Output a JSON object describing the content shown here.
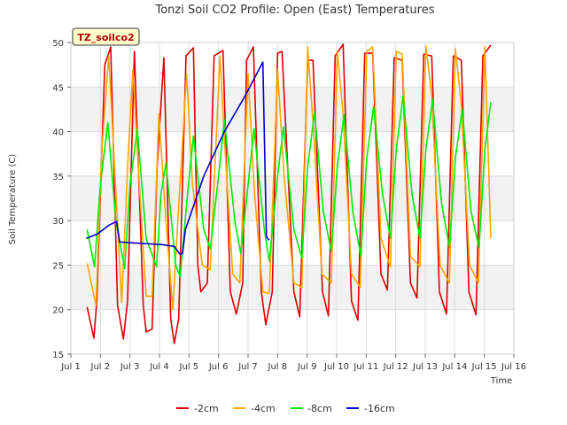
{
  "chart_data": {
    "type": "line",
    "title": "Tonzi Soil CO2 Profile: Open (East) Temperatures",
    "xlabel": "Time",
    "ylabel": "Soil Temperature (C)",
    "station_label": "TZ_soilco2",
    "xlim": [
      1.0,
      16.0
    ],
    "ylim": [
      15,
      50
    ],
    "x_ticks": [
      {
        "value": 1,
        "label": "Jul 1"
      },
      {
        "value": 2,
        "label": "Jul 2"
      },
      {
        "value": 3,
        "label": "Jul 3"
      },
      {
        "value": 4,
        "label": "Jul 4"
      },
      {
        "value": 5,
        "label": "Jul 5"
      },
      {
        "value": 6,
        "label": "Jul 6"
      },
      {
        "value": 7,
        "label": "Jul 7"
      },
      {
        "value": 8,
        "label": "Jul 8"
      },
      {
        "value": 9,
        "label": "Jul 9"
      },
      {
        "value": 10,
        "label": "Jul 10"
      },
      {
        "value": 11,
        "label": "Jul 11"
      },
      {
        "value": 12,
        "label": "Jul 12"
      },
      {
        "value": 13,
        "label": "Jul 13"
      },
      {
        "value": 14,
        "label": "Jul 14"
      },
      {
        "value": 15,
        "label": "Jul 15"
      },
      {
        "value": 16,
        "label": "Jul 16"
      }
    ],
    "y_ticks": [
      15,
      20,
      25,
      30,
      35,
      40,
      45,
      50
    ],
    "grid": true,
    "legend_position": "bottom",
    "series": [
      {
        "name": "-2cm",
        "color": "#dd0000",
        "x": [
          1.55,
          1.78,
          1.88,
          2.15,
          2.35,
          2.58,
          2.78,
          2.92,
          3.15,
          3.45,
          3.55,
          3.75,
          3.92,
          4.15,
          4.38,
          4.5,
          4.65,
          4.9,
          5.15,
          5.3,
          5.4,
          5.62,
          5.85,
          6.15,
          6.4,
          6.6,
          6.82,
          6.95,
          7.18,
          7.45,
          7.6,
          7.82,
          8.0,
          8.15,
          8.55,
          8.75,
          9.02,
          9.2,
          9.52,
          9.72,
          9.95,
          10.22,
          10.5,
          10.72,
          10.95,
          11.22,
          11.5,
          11.72,
          11.95,
          12.22,
          12.5,
          12.72,
          12.95,
          13.22,
          13.48,
          13.72,
          13.95,
          14.22,
          14.48,
          14.72,
          14.95,
          15.22
        ],
        "y": [
          20.3,
          16.8,
          21.0,
          47.5,
          49.5,
          20.5,
          16.7,
          21.0,
          49.0,
          20.5,
          17.5,
          17.8,
          36.0,
          48.3,
          19.0,
          16.2,
          19.0,
          48.5,
          49.4,
          25.0,
          22.0,
          23.0,
          48.5,
          49.1,
          22.0,
          19.5,
          23.0,
          48.0,
          49.5,
          22.0,
          18.3,
          22.0,
          48.8,
          49.0,
          22.0,
          19.2,
          48.0,
          48.0,
          22.0,
          19.3,
          48.5,
          49.8,
          21.0,
          18.8,
          48.8,
          48.8,
          24.0,
          22.2,
          48.3,
          48.0,
          23.0,
          21.3,
          48.7,
          48.5,
          22.0,
          19.5,
          48.5,
          48.0,
          22.0,
          19.4,
          48.5,
          49.7
        ]
      },
      {
        "name": "-4cm",
        "color": "#ffa500",
        "x": [
          1.55,
          1.85,
          2.05,
          2.28,
          2.45,
          2.72,
          2.95,
          3.1,
          3.3,
          3.55,
          3.75,
          3.98,
          4.22,
          4.45,
          4.62,
          4.92,
          5.12,
          5.45,
          5.72,
          6.05,
          6.22,
          6.48,
          6.72,
          7.0,
          7.22,
          7.5,
          7.72,
          8.0,
          8.22,
          8.55,
          8.82,
          9.02,
          9.22,
          9.5,
          9.82,
          10.02,
          10.22,
          10.5,
          10.8,
          11.02,
          11.22,
          11.5,
          11.82,
          12.02,
          12.22,
          12.5,
          12.82,
          13.02,
          13.22,
          13.5,
          13.82,
          14.02,
          14.22,
          14.5,
          14.8,
          15.02,
          15.22
        ],
        "y": [
          25.2,
          20.5,
          38.0,
          48.5,
          38.0,
          20.8,
          38.0,
          47.0,
          35.0,
          21.5,
          21.5,
          42.0,
          30.0,
          20.0,
          30.0,
          46.5,
          34.0,
          25.0,
          24.5,
          48.5,
          38.0,
          24.0,
          23.0,
          46.5,
          33.0,
          22.0,
          21.8,
          47.0,
          35.0,
          23.0,
          22.5,
          49.5,
          40.0,
          24.0,
          23.0,
          49.0,
          42.0,
          24.0,
          22.5,
          49.0,
          49.5,
          28.0,
          24.8,
          49.0,
          48.7,
          26.0,
          24.8,
          49.6,
          44.0,
          25.0,
          23.0,
          49.3,
          43.0,
          25.0,
          23.0,
          49.5,
          28.0
        ]
      },
      {
        "name": "-8cm",
        "color": "#00ee00",
        "x": [
          1.55,
          1.8,
          2.0,
          2.25,
          2.52,
          2.82,
          3.0,
          3.25,
          3.55,
          3.9,
          4.05,
          4.22,
          4.55,
          4.7,
          4.95,
          5.15,
          5.5,
          5.72,
          6.0,
          6.2,
          6.55,
          6.75,
          7.0,
          7.2,
          7.55,
          7.72,
          8.0,
          8.2,
          8.55,
          8.82,
          9.02,
          9.25,
          9.55,
          9.82,
          10.02,
          10.25,
          10.55,
          10.82,
          11.02,
          11.25,
          11.55,
          11.82,
          12.02,
          12.25,
          12.55,
          12.82,
          13.02,
          13.25,
          13.55,
          13.82,
          14.02,
          14.25,
          14.55,
          14.82,
          15.02,
          15.22
        ],
        "y": [
          29.0,
          24.8,
          34.0,
          41.0,
          30.0,
          24.6,
          34.0,
          40.3,
          28.0,
          24.8,
          33.0,
          36.5,
          25.0,
          23.7,
          33.0,
          39.5,
          29.0,
          26.8,
          35.0,
          41.3,
          30.0,
          26.3,
          34.0,
          40.3,
          29.0,
          25.4,
          35.0,
          40.5,
          29.0,
          25.8,
          36.0,
          42.2,
          31.0,
          26.5,
          36.0,
          41.9,
          31.0,
          26.0,
          37.0,
          42.8,
          33.0,
          28.0,
          38.0,
          44.0,
          33.0,
          28.0,
          38.0,
          43.6,
          32.0,
          27.0,
          37.0,
          42.5,
          31.0,
          27.0,
          38.0,
          43.3
        ]
      },
      {
        "name": "-16cm",
        "color": "#0000cc",
        "x": [
          1.52,
          1.9,
          2.3,
          2.55,
          2.65,
          3.1,
          3.6,
          4.1,
          4.5,
          4.7,
          4.78,
          4.88,
          5.5,
          6.2,
          6.9,
          7.5,
          7.62,
          7.68,
          7.72
        ],
        "y": [
          28.0,
          28.5,
          29.5,
          29.9,
          27.6,
          27.5,
          27.4,
          27.3,
          27.1,
          26.2,
          26.3,
          29.0,
          35.0,
          40.0,
          44.0,
          47.8,
          28.2,
          27.9,
          27.8
        ]
      }
    ]
  }
}
